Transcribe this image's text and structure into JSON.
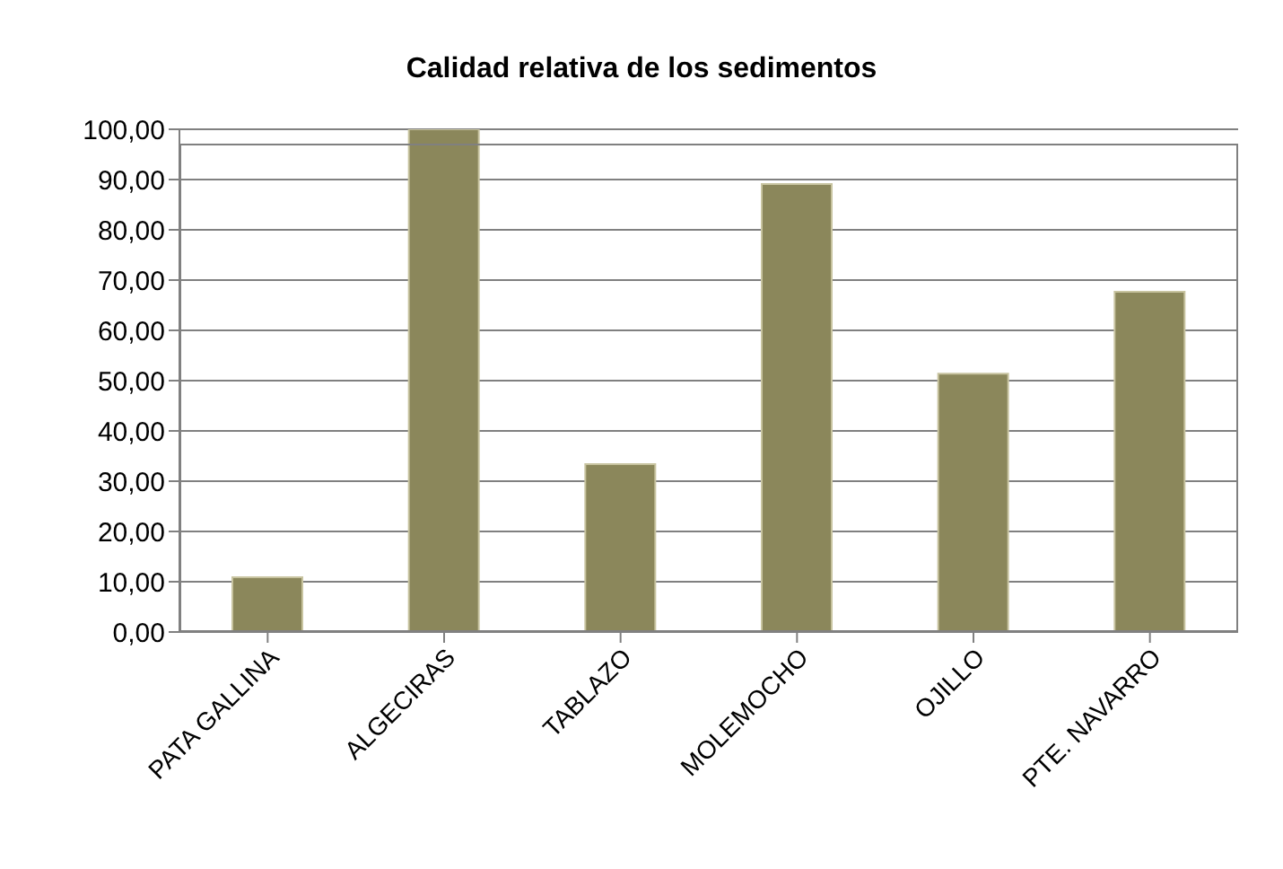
{
  "chart_data": {
    "type": "bar",
    "title": "Calidad relativa de los sedimentos",
    "categories": [
      "PATA GALLINA",
      "ALGECIRAS",
      "TABLAZO",
      "MOLEMOCHO",
      "OJILLO",
      "PTE. NAVARRO"
    ],
    "values": [
      10.9,
      100,
      33.4,
      89.1,
      51.4,
      67.7
    ],
    "color": "#8b875b",
    "ylim": [
      0,
      100
    ],
    "yticks": [
      {
        "value": 0,
        "label": "0,00"
      },
      {
        "value": 10,
        "label": "10,00"
      },
      {
        "value": 20,
        "label": "20,00"
      },
      {
        "value": 30,
        "label": "30,00"
      },
      {
        "value": 40,
        "label": "40,00"
      },
      {
        "value": 50,
        "label": "50,00"
      },
      {
        "value": 60,
        "label": "60,00"
      },
      {
        "value": 70,
        "label": "70,00"
      },
      {
        "value": 80,
        "label": "80,00"
      },
      {
        "value": 90,
        "label": "90,00"
      },
      {
        "value": 100,
        "label": "100,00"
      }
    ],
    "grid": "y"
  }
}
